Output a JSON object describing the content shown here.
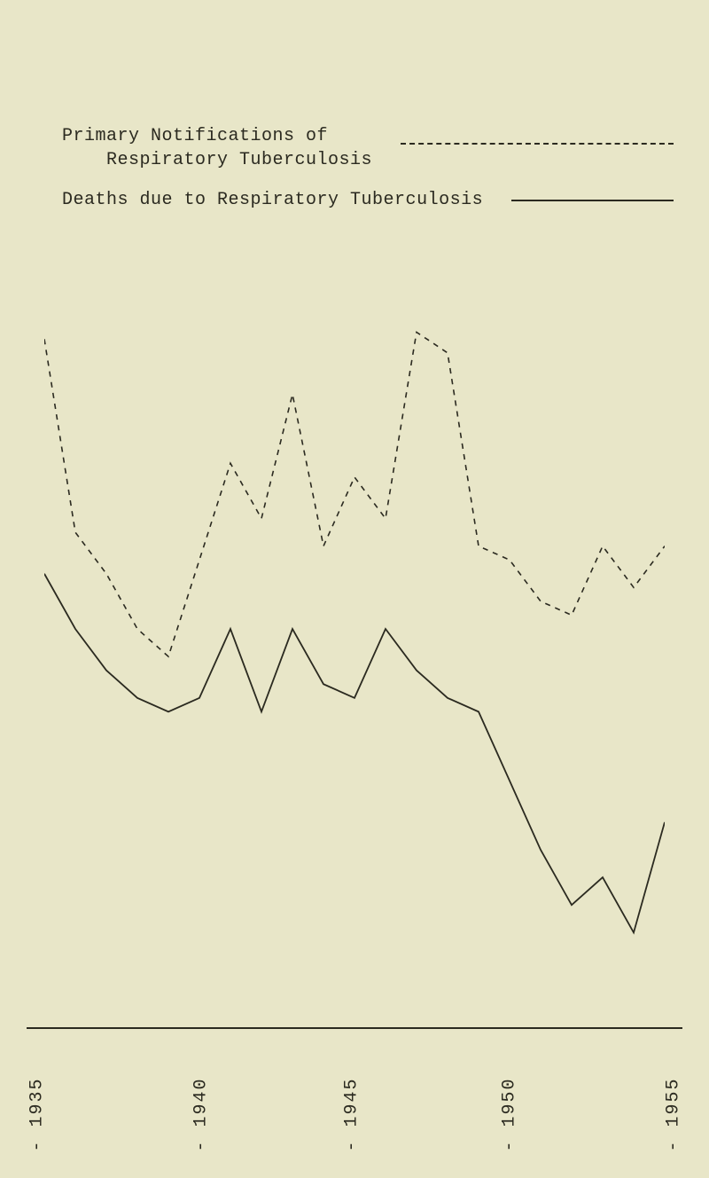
{
  "legend": {
    "series1": {
      "line1": "Primary Notifications of",
      "line2": "Respiratory Tuberculosis",
      "line_style": "dashed"
    },
    "series2": {
      "line1": "Deaths due to Respiratory Tuberculosis",
      "line_style": "solid"
    }
  },
  "chart": {
    "type": "line",
    "background_color": "#e8e6c8",
    "line_color": "#2b2a20",
    "axis_color": "#2b2a20",
    "font_family": "Courier New",
    "label_fontsize": 20,
    "x_years": [
      1935,
      1936,
      1937,
      1938,
      1939,
      1940,
      1941,
      1942,
      1943,
      1944,
      1945,
      1946,
      1947,
      1948,
      1949,
      1950,
      1951,
      1952,
      1953,
      1954,
      1955
    ],
    "x_ticks": [
      {
        "year": 1935,
        "label": "1935",
        "pos": 0.0
      },
      {
        "year": 1940,
        "label": "1940",
        "pos": 0.25
      },
      {
        "year": 1945,
        "label": "1945",
        "pos": 0.48
      },
      {
        "year": 1950,
        "label": "1950",
        "pos": 0.72
      },
      {
        "year": 1955,
        "label": "1955",
        "pos": 0.97
      }
    ],
    "y_range": [
      0,
      100
    ],
    "series": [
      {
        "name": "Primary Notifications of Respiratory Tuberculosis",
        "dash": "6,6",
        "width": 1.6,
        "values": [
          92,
          64,
          58,
          50,
          46,
          60,
          74,
          66,
          84,
          62,
          72,
          66,
          93,
          90,
          62,
          60,
          54,
          52,
          62,
          56,
          62
        ]
      },
      {
        "name": "Deaths due to Respiratory Tuberculosis",
        "dash": "none",
        "width": 1.8,
        "values": [
          58,
          50,
          44,
          40,
          38,
          40,
          50,
          38,
          50,
          42,
          40,
          50,
          44,
          40,
          38,
          28,
          18,
          10,
          14,
          6,
          22
        ]
      }
    ]
  }
}
